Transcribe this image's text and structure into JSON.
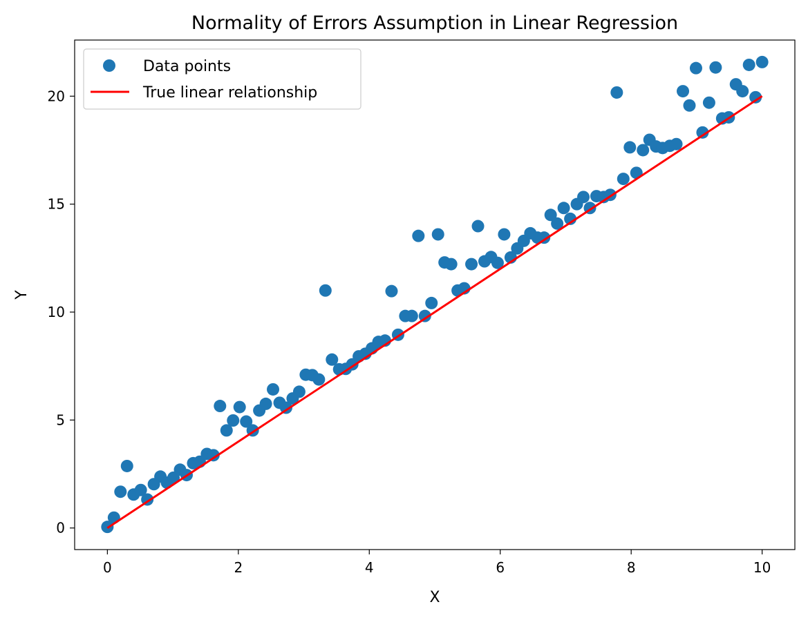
{
  "chart_data": {
    "type": "scatter",
    "title": "Normality of Errors Assumption in Linear Regression",
    "xlabel": "X",
    "ylabel": "Y",
    "xlim": [
      -0.5,
      10.5
    ],
    "ylim": [
      -1.0,
      22.6
    ],
    "xticks": [
      0,
      2,
      4,
      6,
      8,
      10
    ],
    "yticks": [
      0,
      5,
      10,
      15,
      20
    ],
    "xtick_labels": [
      "0",
      "2",
      "4",
      "6",
      "8",
      "10"
    ],
    "ytick_labels": [
      "0",
      "5",
      "10",
      "15",
      "20"
    ],
    "grid": false,
    "legend_position": "top-left",
    "series": [
      {
        "name": "Data points",
        "kind": "scatter",
        "color": "#1f77b4",
        "points": [
          [
            0.0,
            0.05
          ],
          [
            0.1,
            0.48
          ],
          [
            0.2,
            1.68
          ],
          [
            0.3,
            2.87
          ],
          [
            0.4,
            1.55
          ],
          [
            0.51,
            1.76
          ],
          [
            0.61,
            1.32
          ],
          [
            0.71,
            2.03
          ],
          [
            0.81,
            2.38
          ],
          [
            0.91,
            2.1
          ],
          [
            1.01,
            2.33
          ],
          [
            1.11,
            2.7
          ],
          [
            1.21,
            2.45
          ],
          [
            1.31,
            3.0
          ],
          [
            1.41,
            3.07
          ],
          [
            1.52,
            3.43
          ],
          [
            1.62,
            3.37
          ],
          [
            1.72,
            5.65
          ],
          [
            1.82,
            4.52
          ],
          [
            1.92,
            4.98
          ],
          [
            2.02,
            5.6
          ],
          [
            2.12,
            4.93
          ],
          [
            2.22,
            4.52
          ],
          [
            2.32,
            5.44
          ],
          [
            2.42,
            5.75
          ],
          [
            2.53,
            6.42
          ],
          [
            2.63,
            5.8
          ],
          [
            2.73,
            5.57
          ],
          [
            2.83,
            6.0
          ],
          [
            2.93,
            6.31
          ],
          [
            3.03,
            7.1
          ],
          [
            3.13,
            7.08
          ],
          [
            3.23,
            6.88
          ],
          [
            3.33,
            11.0
          ],
          [
            3.43,
            7.8
          ],
          [
            3.54,
            7.35
          ],
          [
            3.64,
            7.37
          ],
          [
            3.74,
            7.58
          ],
          [
            3.84,
            7.95
          ],
          [
            3.94,
            8.07
          ],
          [
            4.04,
            8.32
          ],
          [
            4.14,
            8.62
          ],
          [
            4.24,
            8.68
          ],
          [
            4.34,
            10.97
          ],
          [
            4.44,
            8.95
          ],
          [
            4.55,
            9.82
          ],
          [
            4.65,
            9.82
          ],
          [
            4.75,
            13.53
          ],
          [
            4.85,
            9.82
          ],
          [
            4.95,
            10.42
          ],
          [
            5.05,
            13.6
          ],
          [
            5.15,
            12.3
          ],
          [
            5.25,
            12.22
          ],
          [
            5.35,
            11.0
          ],
          [
            5.45,
            11.1
          ],
          [
            5.56,
            12.22
          ],
          [
            5.66,
            13.98
          ],
          [
            5.76,
            12.35
          ],
          [
            5.86,
            12.55
          ],
          [
            5.96,
            12.28
          ],
          [
            6.06,
            13.6
          ],
          [
            6.16,
            12.53
          ],
          [
            6.26,
            12.95
          ],
          [
            6.36,
            13.3
          ],
          [
            6.46,
            13.65
          ],
          [
            6.57,
            13.45
          ],
          [
            6.67,
            13.45
          ],
          [
            6.77,
            14.5
          ],
          [
            6.87,
            14.1
          ],
          [
            6.97,
            14.82
          ],
          [
            7.07,
            14.32
          ],
          [
            7.17,
            15.0
          ],
          [
            7.27,
            15.33
          ],
          [
            7.37,
            14.82
          ],
          [
            7.47,
            15.37
          ],
          [
            7.58,
            15.33
          ],
          [
            7.68,
            15.43
          ],
          [
            7.78,
            20.17
          ],
          [
            7.88,
            16.17
          ],
          [
            7.98,
            17.63
          ],
          [
            8.08,
            16.45
          ],
          [
            8.18,
            17.5
          ],
          [
            8.28,
            17.98
          ],
          [
            8.38,
            17.67
          ],
          [
            8.48,
            17.6
          ],
          [
            8.59,
            17.7
          ],
          [
            8.69,
            17.78
          ],
          [
            8.79,
            20.23
          ],
          [
            8.89,
            19.57
          ],
          [
            8.99,
            21.3
          ],
          [
            9.09,
            18.32
          ],
          [
            9.19,
            19.7
          ],
          [
            9.29,
            21.33
          ],
          [
            9.39,
            18.97
          ],
          [
            9.49,
            19.02
          ],
          [
            9.6,
            20.55
          ],
          [
            9.7,
            20.23
          ],
          [
            9.8,
            21.45
          ],
          [
            9.9,
            19.95
          ],
          [
            10.0,
            21.58
          ]
        ]
      },
      {
        "name": "True linear relationship",
        "kind": "line",
        "color": "#ff0000",
        "points": [
          [
            0,
            0
          ],
          [
            10,
            20
          ]
        ]
      }
    ]
  }
}
